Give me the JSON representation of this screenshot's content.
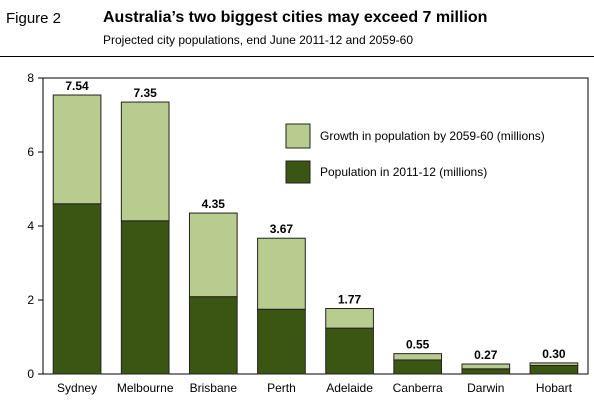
{
  "figure_label": "Figure 2",
  "title": "Australia’s two biggest cities may exceed 7 million",
  "subtitle": "Projected city populations, end June 2011-12 and 2059-60",
  "colors": {
    "base": "#3a5612",
    "growth": "#b7cc8e",
    "edge": "#222222"
  },
  "chart_data": {
    "type": "bar",
    "stacked": true,
    "categories": [
      "Sydney",
      "Melbourne",
      "Brisbane",
      "Perth",
      "Adelaide",
      "Canberra",
      "Darwin",
      "Hobart"
    ],
    "series": [
      {
        "name": "Population in 2011-12 (millions)",
        "values": [
          4.6,
          4.14,
          2.09,
          1.75,
          1.24,
          0.38,
          0.14,
          0.23
        ]
      },
      {
        "name": "Growth in population by 2059-60 (millions)",
        "values": [
          2.94,
          3.21,
          2.26,
          1.92,
          0.53,
          0.17,
          0.13,
          0.07
        ]
      }
    ],
    "totals": [
      "7.54",
      "7.35",
      "4.35",
      "3.67",
      "1.77",
      "0.55",
      "0.27",
      "0.30"
    ],
    "ylim": [
      0,
      8
    ],
    "yticks": [
      "0",
      "2",
      "4",
      "6",
      "8"
    ],
    "legend": [
      "Growth in population by 2059-60 (millions)",
      "Population in 2011-12 (millions)"
    ],
    "legend_placement": "top-right",
    "grid": false
  }
}
